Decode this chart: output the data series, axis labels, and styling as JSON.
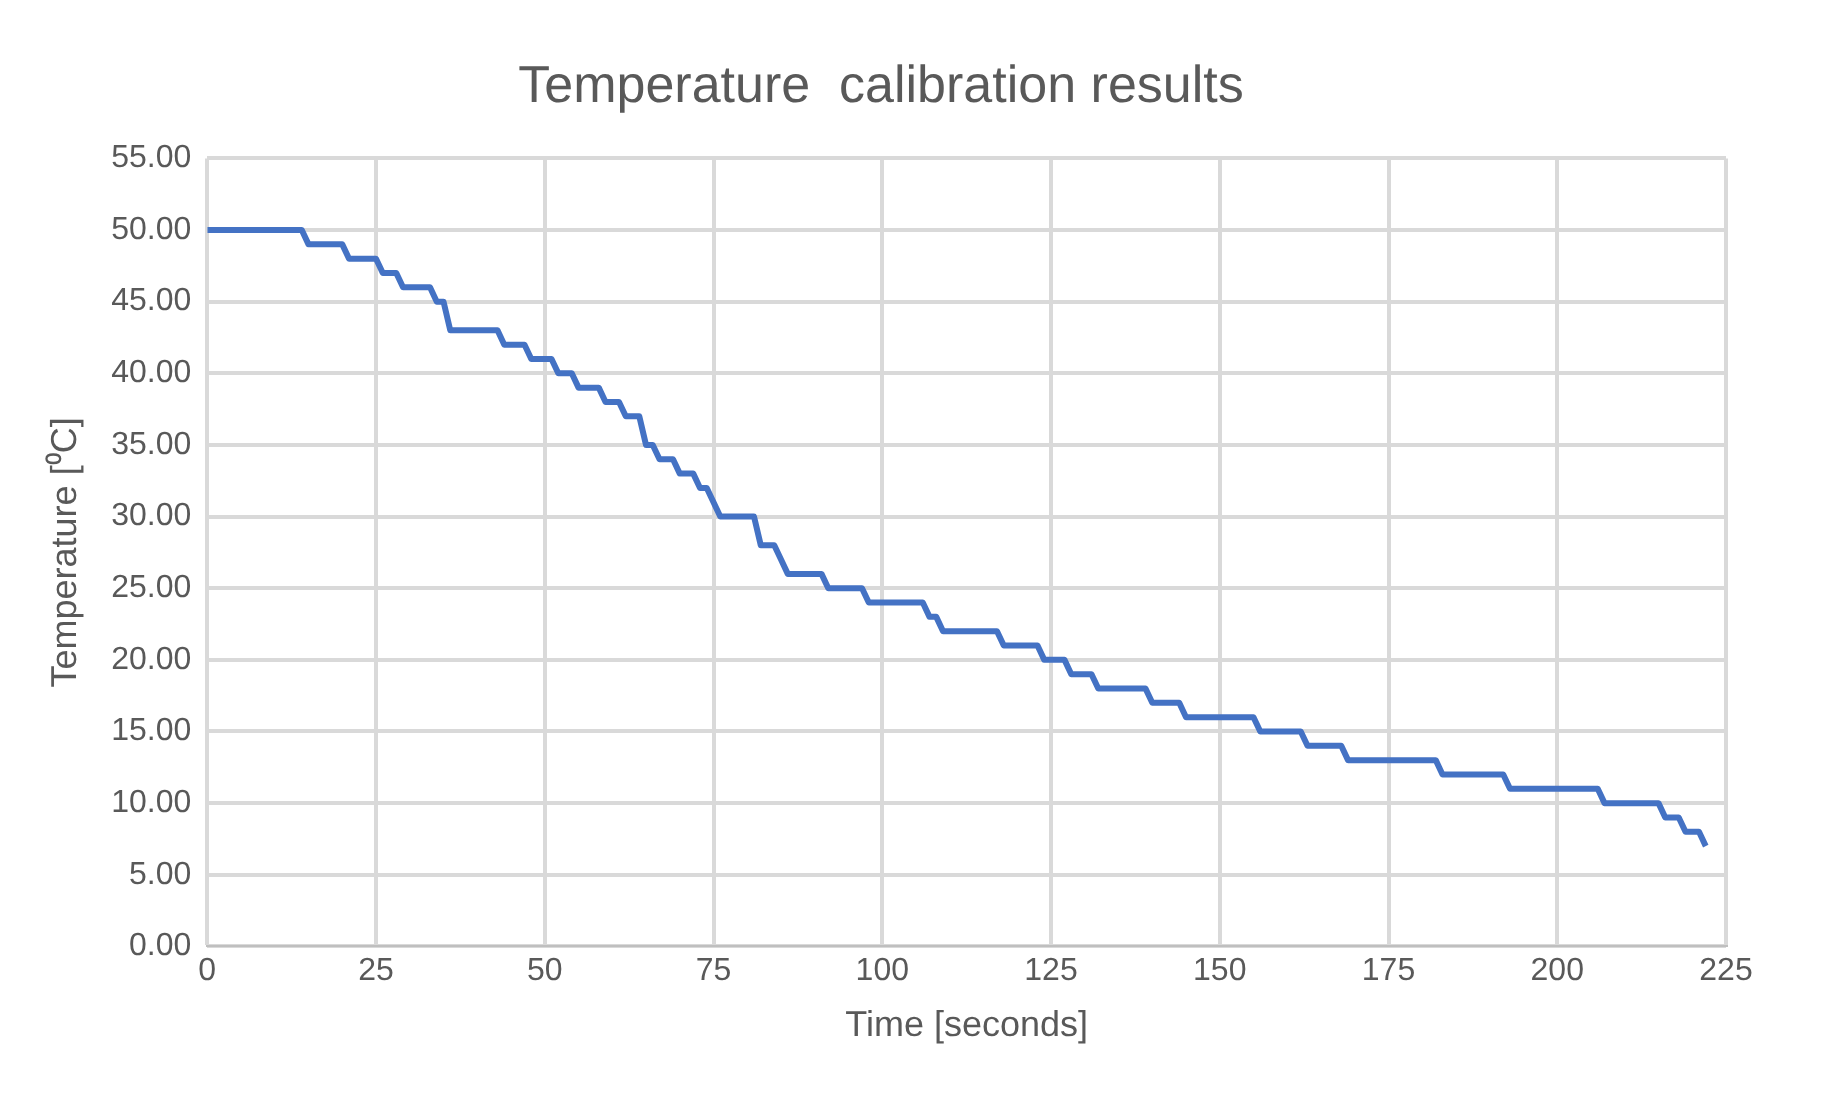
{
  "chart_data": {
    "type": "line",
    "title": "Temperature  calibration results",
    "xlabel": "Time [seconds]",
    "ylabel": "Temperature [⁰C]",
    "x": [
      0,
      14,
      15,
      20,
      21,
      25,
      26,
      28,
      29,
      33,
      34,
      35,
      36,
      43,
      44,
      47,
      48,
      51,
      52,
      54,
      55,
      58,
      59,
      61,
      62,
      64,
      65,
      66,
      67,
      69,
      70,
      72,
      73,
      74,
      76,
      81,
      82,
      84,
      85,
      86,
      91,
      92,
      97,
      98,
      106,
      107,
      108,
      109,
      117,
      118,
      123,
      124,
      127,
      128,
      131,
      132,
      139,
      140,
      144,
      145,
      155,
      156,
      162,
      163,
      168,
      169,
      182,
      183,
      192,
      193,
      206,
      207,
      215,
      216,
      218,
      219,
      221,
      222
    ],
    "series": [
      {
        "color": "#4472c4",
        "values": [
          50,
          50,
          49,
          49,
          48,
          48,
          47,
          47,
          46,
          46,
          45,
          45,
          43,
          43,
          42,
          42,
          41,
          41,
          40,
          40,
          39,
          39,
          38,
          38,
          37,
          37,
          35,
          35,
          34,
          34,
          33,
          33,
          32,
          32,
          30,
          30,
          28,
          28,
          27,
          26,
          26,
          25,
          25,
          24,
          24,
          23,
          23,
          22,
          22,
          21,
          21,
          20,
          20,
          19,
          19,
          18,
          18,
          17,
          17,
          16,
          16,
          15,
          15,
          14,
          14,
          13,
          13,
          12,
          12,
          11,
          11,
          10,
          10,
          9,
          9,
          8,
          8,
          7
        ]
      }
    ],
    "xlim": [
      0,
      225
    ],
    "xticks": [
      0,
      25,
      50,
      75,
      100,
      125,
      150,
      175,
      200,
      225
    ],
    "ylim": [
      0,
      55
    ],
    "yticks": [
      {
        "value": 0,
        "label": "0.00"
      },
      {
        "value": 5,
        "label": "5.00"
      },
      {
        "value": 10,
        "label": "10.00"
      },
      {
        "value": 15,
        "label": "15.00"
      },
      {
        "value": 20,
        "label": "20.00"
      },
      {
        "value": 25,
        "label": "25.00"
      },
      {
        "value": 30,
        "label": "30.00"
      },
      {
        "value": 35,
        "label": "35.00"
      },
      {
        "value": 40,
        "label": "40.00"
      },
      {
        "value": 45,
        "label": "45.00"
      },
      {
        "value": 50,
        "label": "50.00"
      },
      {
        "value": 55,
        "label": "55.00"
      }
    ],
    "grid": true,
    "legend": false,
    "marker": "none",
    "line_style": "solid"
  }
}
